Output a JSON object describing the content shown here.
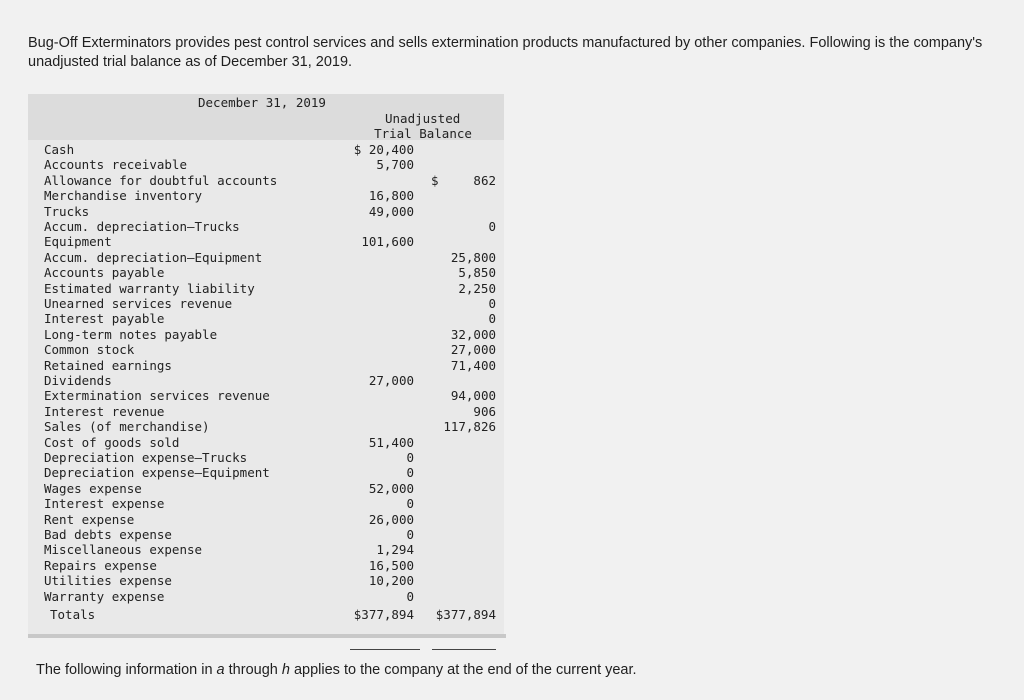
{
  "intro": "Bug-Off Exterminators provides pest control services and sells extermination products manufactured by other companies. Following is the company's unadjusted trial balance as of December 31, 2019.",
  "table": {
    "date": "December 31, 2019",
    "col_header_1": "Unadjusted",
    "col_header_2": "Trial Balance",
    "rows": [
      {
        "name": "Cash",
        "debit": "$ 20,400",
        "credit": ""
      },
      {
        "name": "Accounts receivable",
        "debit": "5,700",
        "credit": ""
      },
      {
        "name": "Allowance for doubtful accounts",
        "debit": "",
        "credit": "862",
        "credit_dollar": "$"
      },
      {
        "name": "Merchandise inventory",
        "debit": "16,800",
        "credit": ""
      },
      {
        "name": "Trucks",
        "debit": "49,000",
        "credit": ""
      },
      {
        "name": "Accum. depreciation—Trucks",
        "debit": "",
        "credit": "0"
      },
      {
        "name": "Equipment",
        "debit": "101,600",
        "credit": ""
      },
      {
        "name": "Accum. depreciation—Equipment",
        "debit": "",
        "credit": "25,800"
      },
      {
        "name": "Accounts payable",
        "debit": "",
        "credit": "5,850"
      },
      {
        "name": "Estimated warranty liability",
        "debit": "",
        "credit": "2,250"
      },
      {
        "name": "Unearned services revenue",
        "debit": "",
        "credit": "0"
      },
      {
        "name": "Interest payable",
        "debit": "",
        "credit": "0"
      },
      {
        "name": "Long-term notes payable",
        "debit": "",
        "credit": "32,000"
      },
      {
        "name": "Common stock",
        "debit": "",
        "credit": "27,000"
      },
      {
        "name": "Retained earnings",
        "debit": "",
        "credit": "71,400"
      },
      {
        "name": "Dividends",
        "debit": "27,000",
        "credit": ""
      },
      {
        "name": "Extermination services revenue",
        "debit": "",
        "credit": "94,000"
      },
      {
        "name": "Interest revenue",
        "debit": "",
        "credit": "906"
      },
      {
        "name": "Sales (of merchandise)",
        "debit": "",
        "credit": "117,826"
      },
      {
        "name": "Cost of goods sold",
        "debit": "51,400",
        "credit": ""
      },
      {
        "name": "Depreciation expense—Trucks",
        "debit": "0",
        "credit": ""
      },
      {
        "name": "Depreciation expense—Equipment",
        "debit": "0",
        "credit": ""
      },
      {
        "name": "Wages expense",
        "debit": "52,000",
        "credit": ""
      },
      {
        "name": "Interest expense",
        "debit": "0",
        "credit": ""
      },
      {
        "name": "Rent expense",
        "debit": "26,000",
        "credit": ""
      },
      {
        "name": "Bad debts expense",
        "debit": "0",
        "credit": ""
      },
      {
        "name": "Miscellaneous expense",
        "debit": "1,294",
        "credit": ""
      },
      {
        "name": "Repairs expense",
        "debit": "16,500",
        "credit": ""
      },
      {
        "name": "Utilities expense",
        "debit": "10,200",
        "credit": ""
      },
      {
        "name": "Warranty expense",
        "debit": "0",
        "credit": ""
      }
    ],
    "totals": {
      "name": "Totals",
      "debit": "$377,894",
      "credit": "$377,894"
    }
  },
  "footer": {
    "prefix": "The following information in ",
    "a": "a",
    "middle": " through ",
    "h": "h",
    "suffix": " applies to the company at the end of the current year."
  }
}
